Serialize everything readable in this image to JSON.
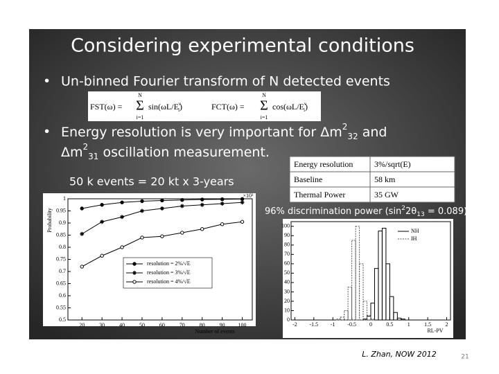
{
  "slide": {
    "title": "Considering experimental conditions",
    "bullet1": "Un-binned Fourier transform of N detected events",
    "formula_fst": [
      "FST(ω) =",
      "N",
      "Σ",
      "i=1",
      "sin(ωL/E",
      "ν",
      "i",
      ")"
    ],
    "formula_fct": [
      "FCT(ω) =",
      "N",
      "Σ",
      "i=1",
      "cos(ωL/E",
      "ν",
      "i",
      ")"
    ],
    "bullet2_line1": [
      "Energy resolution is very important for Δm",
      "2",
      "32",
      "  and"
    ],
    "bullet2_line2": [
      "Δm",
      "2",
      "31",
      "  oscillation measurement."
    ],
    "events_note": "50 k events = 20 kt x 3-years",
    "table": {
      "rows": [
        [
          "Energy resolution",
          "3%/sqrt(E)"
        ],
        [
          "Baseline",
          "58 km"
        ],
        [
          "Thermal Power",
          "35 GW"
        ]
      ]
    },
    "caption": [
      "96% discrimination power (sin",
      "2",
      "2θ",
      "13",
      " = 0.089)"
    ],
    "footer": "L. Zhan, NOW 2012",
    "page_number": "21"
  },
  "plot": {
    "type": "line",
    "y_label": "Probability",
    "x_label": "Number of events",
    "x_unit": "×10³",
    "x": [
      20,
      30,
      40,
      50,
      60,
      70,
      80,
      90,
      100
    ],
    "series": [
      {
        "name": "resolution = 2%/√E",
        "color": "#000000",
        "marker": "filled",
        "values": [
          0.96,
          0.975,
          0.985,
          0.99,
          0.993,
          0.995,
          0.997,
          0.998,
          0.999
        ]
      },
      {
        "name": "resolution = 3%/√E",
        "color": "#000000",
        "marker": "star",
        "values": [
          0.855,
          0.905,
          0.925,
          0.95,
          0.96,
          0.97,
          0.975,
          0.98,
          0.985
        ]
      },
      {
        "name": "resolution = 4%/√E",
        "color": "#000000",
        "marker": "open",
        "values": [
          0.72,
          0.765,
          0.8,
          0.84,
          0.845,
          0.86,
          0.875,
          0.895,
          0.905
        ]
      }
    ],
    "xlim": [
      13,
      105
    ],
    "ylim": [
      0.5,
      1
    ],
    "xticks": [
      20,
      30,
      40,
      50,
      60,
      70,
      80,
      90,
      100
    ],
    "yticks": [
      0.5,
      0.55,
      0.6,
      0.65,
      0.7,
      0.75,
      0.8,
      0.85,
      0.9,
      0.95,
      1
    ]
  },
  "histogram": {
    "type": "histogram",
    "x_label": "RL-PV",
    "bins": [
      -1,
      -0.9,
      -0.8,
      -0.7,
      -0.6,
      -0.5,
      -0.4,
      -0.3,
      -0.2,
      -0.1,
      0,
      0.1,
      0.2,
      0.3,
      0.4,
      0.5,
      0.6,
      0.7,
      0.8,
      0.9,
      1
    ],
    "series": [
      {
        "name": "NH",
        "color": "#000000",
        "dash": false,
        "values": [
          0,
          0,
          0,
          0,
          0,
          0,
          0,
          0,
          1,
          4,
          18,
          55,
          95,
          98,
          60,
          25,
          8,
          2,
          1,
          0
        ]
      },
      {
        "name": "IH",
        "color": "#555555",
        "dash": true,
        "values": [
          0,
          1,
          3,
          10,
          35,
          85,
          100,
          60,
          20,
          5,
          1,
          0,
          0,
          0,
          0,
          0,
          0,
          0,
          0,
          0
        ]
      }
    ],
    "xlim": [
      -2.1,
      2.1
    ],
    "ylim": [
      0,
      105
    ],
    "xticks": [
      -2,
      -1.5,
      -1,
      -0.5,
      0,
      0.5,
      1,
      1.5,
      2
    ],
    "yticks": [
      0,
      10,
      20,
      30,
      40,
      50,
      60,
      70,
      80,
      90,
      100
    ]
  }
}
